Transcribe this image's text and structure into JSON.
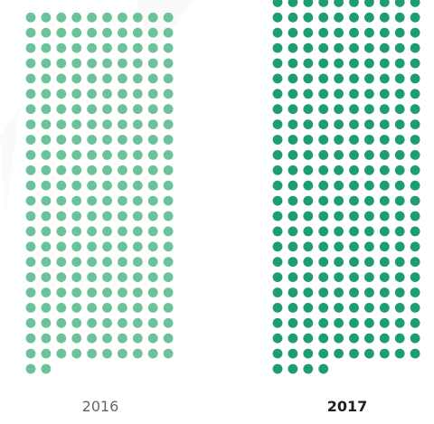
{
  "chart_data": {
    "type": "waffle",
    "dots_per_row": 10,
    "series": [
      {
        "category": "2016",
        "value": 232,
        "color": "#6cc29a",
        "label_weight": "normal"
      },
      {
        "category": "2017",
        "value": 244,
        "color": "#1e9c74",
        "label_weight": "bold"
      }
    ],
    "grid": false,
    "legend": "none"
  }
}
